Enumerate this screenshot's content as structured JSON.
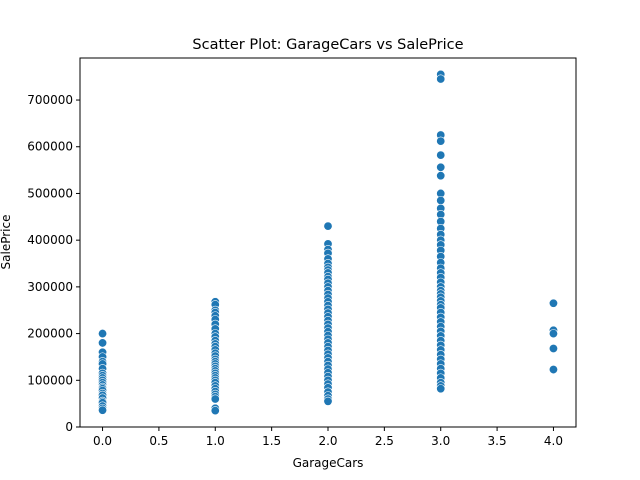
{
  "chart_data": {
    "type": "scatter",
    "title": "Scatter Plot: GarageCars vs SalePrice",
    "xlabel": "GarageCars",
    "ylabel": "SalePrice",
    "xlim": [
      -0.2,
      4.2
    ],
    "ylim": [
      0,
      790000
    ],
    "xticks": [
      0.0,
      0.5,
      1.0,
      1.5,
      2.0,
      2.5,
      3.0,
      3.5,
      4.0
    ],
    "xtick_labels": [
      "0.0",
      "0.5",
      "1.0",
      "1.5",
      "2.0",
      "2.5",
      "3.0",
      "3.5",
      "4.0"
    ],
    "yticks": [
      0,
      100000,
      200000,
      300000,
      400000,
      500000,
      600000,
      700000
    ],
    "ytick_labels": [
      "0",
      "100000",
      "200000",
      "300000",
      "400000",
      "500000",
      "600000",
      "700000"
    ],
    "grid": false,
    "marker_color": "#1f77b4",
    "points": [
      [
        0,
        200000
      ],
      [
        0,
        180000
      ],
      [
        0,
        160000
      ],
      [
        0,
        150000
      ],
      [
        0,
        140000
      ],
      [
        0,
        135000
      ],
      [
        0,
        125000
      ],
      [
        0,
        115000
      ],
      [
        0,
        110000
      ],
      [
        0,
        105000
      ],
      [
        0,
        100000
      ],
      [
        0,
        95000
      ],
      [
        0,
        90000
      ],
      [
        0,
        85000
      ],
      [
        0,
        82000
      ],
      [
        0,
        78000
      ],
      [
        0,
        72000
      ],
      [
        0,
        68000
      ],
      [
        0,
        62000
      ],
      [
        0,
        55000
      ],
      [
        0,
        52000
      ],
      [
        0,
        45000
      ],
      [
        0,
        40000
      ],
      [
        0,
        36000
      ],
      [
        1,
        268000
      ],
      [
        1,
        262000
      ],
      [
        1,
        250000
      ],
      [
        1,
        245000
      ],
      [
        1,
        238000
      ],
      [
        1,
        230000
      ],
      [
        1,
        220000
      ],
      [
        1,
        210000
      ],
      [
        1,
        200000
      ],
      [
        1,
        193000
      ],
      [
        1,
        185000
      ],
      [
        1,
        178000
      ],
      [
        1,
        172000
      ],
      [
        1,
        165000
      ],
      [
        1,
        158000
      ],
      [
        1,
        152000
      ],
      [
        1,
        145000
      ],
      [
        1,
        140000
      ],
      [
        1,
        135000
      ],
      [
        1,
        130000
      ],
      [
        1,
        125000
      ],
      [
        1,
        120000
      ],
      [
        1,
        115000
      ],
      [
        1,
        110000
      ],
      [
        1,
        105000
      ],
      [
        1,
        100000
      ],
      [
        1,
        95000
      ],
      [
        1,
        88000
      ],
      [
        1,
        82000
      ],
      [
        1,
        76000
      ],
      [
        1,
        70000
      ],
      [
        1,
        65000
      ],
      [
        1,
        60000
      ],
      [
        1,
        40000
      ],
      [
        1,
        35000
      ],
      [
        2,
        430000
      ],
      [
        2,
        392000
      ],
      [
        2,
        380000
      ],
      [
        2,
        372000
      ],
      [
        2,
        360000
      ],
      [
        2,
        350000
      ],
      [
        2,
        342000
      ],
      [
        2,
        336000
      ],
      [
        2,
        330000
      ],
      [
        2,
        322000
      ],
      [
        2,
        316000
      ],
      [
        2,
        308000
      ],
      [
        2,
        300000
      ],
      [
        2,
        292000
      ],
      [
        2,
        284000
      ],
      [
        2,
        276000
      ],
      [
        2,
        268000
      ],
      [
        2,
        260000
      ],
      [
        2,
        252000
      ],
      [
        2,
        244000
      ],
      [
        2,
        236000
      ],
      [
        2,
        228000
      ],
      [
        2,
        220000
      ],
      [
        2,
        212000
      ],
      [
        2,
        204000
      ],
      [
        2,
        196000
      ],
      [
        2,
        188000
      ],
      [
        2,
        180000
      ],
      [
        2,
        172000
      ],
      [
        2,
        164000
      ],
      [
        2,
        156000
      ],
      [
        2,
        148000
      ],
      [
        2,
        140000
      ],
      [
        2,
        132000
      ],
      [
        2,
        124000
      ],
      [
        2,
        116000
      ],
      [
        2,
        108000
      ],
      [
        2,
        100000
      ],
      [
        2,
        92000
      ],
      [
        2,
        84000
      ],
      [
        2,
        75000
      ],
      [
        2,
        67000
      ],
      [
        2,
        60000
      ],
      [
        2,
        55000
      ],
      [
        3,
        755000
      ],
      [
        3,
        745000
      ],
      [
        3,
        625000
      ],
      [
        3,
        612000
      ],
      [
        3,
        582000
      ],
      [
        3,
        556000
      ],
      [
        3,
        538000
      ],
      [
        3,
        500000
      ],
      [
        3,
        485000
      ],
      [
        3,
        468000
      ],
      [
        3,
        455000
      ],
      [
        3,
        440000
      ],
      [
        3,
        425000
      ],
      [
        3,
        412000
      ],
      [
        3,
        400000
      ],
      [
        3,
        390000
      ],
      [
        3,
        378000
      ],
      [
        3,
        365000
      ],
      [
        3,
        352000
      ],
      [
        3,
        340000
      ],
      [
        3,
        330000
      ],
      [
        3,
        320000
      ],
      [
        3,
        310000
      ],
      [
        3,
        300000
      ],
      [
        3,
        292000
      ],
      [
        3,
        285000
      ],
      [
        3,
        278000
      ],
      [
        3,
        270000
      ],
      [
        3,
        262000
      ],
      [
        3,
        255000
      ],
      [
        3,
        245000
      ],
      [
        3,
        235000
      ],
      [
        3,
        225000
      ],
      [
        3,
        215000
      ],
      [
        3,
        205000
      ],
      [
        3,
        195000
      ],
      [
        3,
        185000
      ],
      [
        3,
        175000
      ],
      [
        3,
        165000
      ],
      [
        3,
        155000
      ],
      [
        3,
        145000
      ],
      [
        3,
        135000
      ],
      [
        3,
        125000
      ],
      [
        3,
        115000
      ],
      [
        3,
        105000
      ],
      [
        3,
        95000
      ],
      [
        3,
        88000
      ],
      [
        3,
        82000
      ],
      [
        4,
        265000
      ],
      [
        4,
        207000
      ],
      [
        4,
        200000
      ],
      [
        4,
        168000
      ],
      [
        4,
        123000
      ]
    ]
  }
}
